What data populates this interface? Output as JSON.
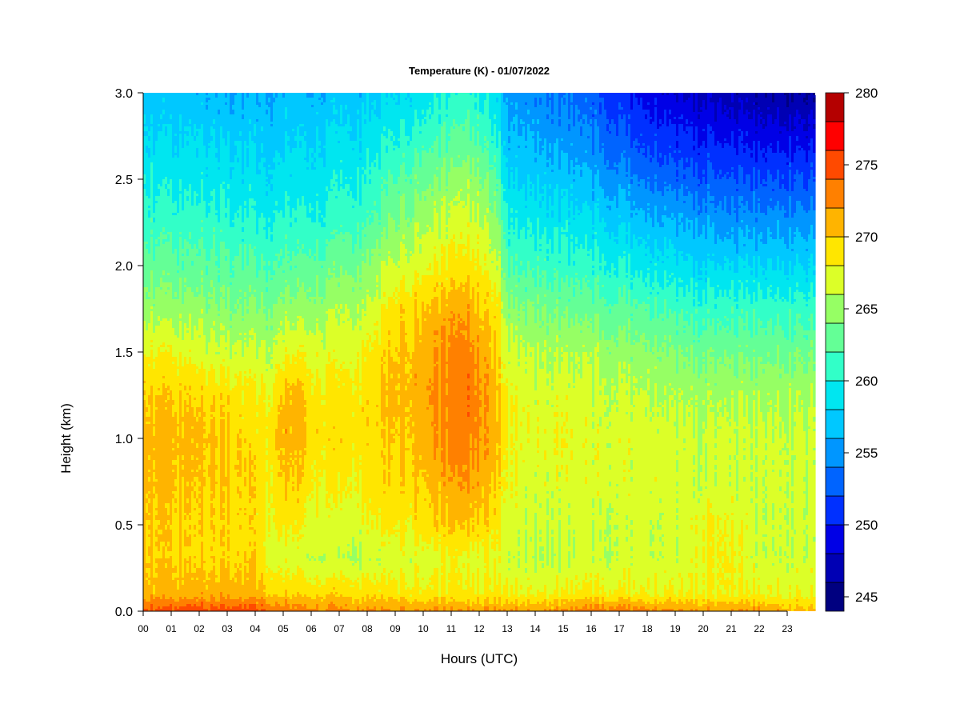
{
  "chart_data": {
    "type": "heatmap",
    "title": "Temperature (K) - 01/07/2022",
    "xlabel": "Hours (UTC)",
    "ylabel": "Height (km)",
    "xlim": [
      0,
      24
    ],
    "ylim": [
      0,
      3.0
    ],
    "x_ticks": [
      "00",
      "01",
      "02",
      "03",
      "04",
      "05",
      "06",
      "07",
      "08",
      "09",
      "10",
      "11",
      "12",
      "13",
      "14",
      "15",
      "16",
      "17",
      "18",
      "19",
      "20",
      "21",
      "22",
      "23"
    ],
    "y_ticks": [
      "0.0",
      "0.5",
      "1.0",
      "1.5",
      "2.0",
      "2.5",
      "3.0"
    ],
    "colorbar": {
      "label_values": [
        "245",
        "250",
        "255",
        "260",
        "265",
        "270",
        "275",
        "280"
      ],
      "levels": [
        244,
        246,
        248,
        250,
        252,
        254,
        256,
        258,
        260,
        262,
        264,
        266,
        268,
        270,
        272,
        274,
        276,
        278,
        280
      ],
      "colors": [
        "#000080",
        "#0000b4",
        "#0000e6",
        "#0030ff",
        "#0064ff",
        "#0096ff",
        "#00c8ff",
        "#00e6f0",
        "#32ffc8",
        "#64ff96",
        "#96ff64",
        "#dcff28",
        "#ffe600",
        "#ffb400",
        "#ff8000",
        "#ff4a00",
        "#ff0000",
        "#b40000"
      ]
    },
    "hours": [
      0,
      1,
      2,
      3,
      4,
      4.5,
      5,
      5.5,
      6,
      7,
      8,
      9,
      10,
      11,
      11.5,
      12,
      12.7,
      13,
      14,
      15,
      16,
      17,
      18,
      19,
      20,
      21,
      22,
      23,
      24
    ],
    "heights_km": [
      0,
      0.1,
      0.3,
      0.5,
      0.75,
      1.0,
      1.25,
      1.5,
      1.75,
      2.0,
      2.25,
      2.5,
      2.75,
      3.0
    ],
    "temperature_K": [
      [
        274.5,
        271.0,
        270.0,
        270.0,
        270.5,
        271.0,
        270.0,
        268.0,
        265.0,
        263.0,
        261.0,
        259.5,
        258.0,
        257.0
      ],
      [
        275.0,
        271.0,
        270.0,
        270.0,
        270.5,
        271.0,
        270.0,
        268.0,
        265.0,
        263.0,
        261.0,
        259.5,
        258.0,
        257.0
      ],
      [
        275.0,
        271.0,
        269.5,
        269.5,
        270.0,
        270.5,
        269.5,
        267.0,
        265.0,
        262.5,
        261.0,
        259.0,
        258.0,
        256.5
      ],
      [
        275.0,
        271.0,
        269.5,
        269.5,
        270.0,
        270.0,
        269.0,
        266.5,
        264.0,
        262.5,
        260.5,
        259.0,
        257.5,
        256.0
      ],
      [
        275.0,
        271.0,
        269.5,
        269.0,
        269.5,
        269.0,
        268.5,
        266.5,
        264.0,
        262.0,
        260.0,
        258.5,
        257.5,
        256.0
      ],
      [
        274.0,
        270.0,
        267.5,
        268.0,
        268.5,
        269.0,
        268.0,
        266.0,
        264.0,
        262.0,
        260.0,
        258.5,
        257.0,
        256.0
      ],
      [
        273.5,
        269.5,
        267.0,
        268.5,
        270.0,
        271.0,
        270.5,
        267.5,
        265.0,
        262.5,
        260.5,
        259.0,
        257.5,
        256.5
      ],
      [
        273.5,
        269.5,
        267.0,
        268.5,
        270.0,
        271.0,
        271.0,
        268.0,
        265.0,
        262.5,
        260.5,
        259.0,
        258.0,
        256.5
      ],
      [
        273.0,
        269.5,
        266.5,
        267.5,
        268.5,
        269.5,
        269.0,
        267.5,
        265.0,
        263.0,
        260.5,
        259.0,
        258.0,
        256.5
      ],
      [
        272.5,
        269.5,
        266.0,
        266.5,
        268.0,
        269.0,
        268.5,
        267.0,
        265.5,
        263.0,
        261.0,
        259.5,
        258.0,
        257.0
      ],
      [
        272.0,
        269.0,
        266.0,
        267.5,
        268.5,
        269.0,
        269.0,
        268.0,
        266.0,
        264.0,
        261.5,
        260.0,
        258.5,
        257.0
      ],
      [
        272.0,
        269.0,
        266.5,
        268.5,
        269.5,
        270.0,
        270.5,
        270.0,
        269.0,
        266.5,
        264.0,
        262.0,
        260.0,
        258.0
      ],
      [
        272.0,
        268.5,
        267.0,
        269.0,
        270.0,
        271.0,
        271.5,
        271.0,
        270.0,
        267.5,
        265.5,
        263.5,
        261.0,
        259.0
      ],
      [
        272.0,
        268.5,
        267.5,
        270.0,
        271.5,
        272.5,
        273.0,
        272.5,
        271.0,
        268.5,
        266.5,
        264.5,
        262.0,
        260.0
      ],
      [
        272.0,
        268.5,
        267.5,
        270.0,
        272.0,
        273.0,
        273.5,
        273.0,
        271.5,
        269.0,
        267.0,
        265.0,
        262.5,
        260.5
      ],
      [
        272.0,
        268.5,
        267.5,
        270.0,
        271.5,
        272.5,
        272.5,
        272.0,
        270.5,
        268.5,
        266.5,
        264.5,
        262.0,
        260.0
      ],
      [
        272.0,
        268.5,
        267.5,
        268.5,
        269.5,
        270.0,
        270.0,
        269.5,
        268.5,
        266.0,
        264.0,
        262.0,
        259.5,
        258.0
      ],
      [
        272.0,
        268.0,
        266.5,
        267.0,
        267.5,
        268.0,
        268.0,
        266.5,
        264.5,
        262.0,
        260.0,
        258.0,
        256.5,
        255.0
      ],
      [
        272.0,
        268.0,
        266.0,
        266.5,
        267.0,
        267.5,
        267.0,
        266.0,
        264.0,
        261.5,
        259.5,
        257.5,
        256.0,
        254.5
      ],
      [
        272.0,
        268.0,
        266.0,
        266.5,
        267.0,
        267.5,
        267.0,
        265.5,
        263.5,
        261.0,
        259.0,
        257.0,
        255.0,
        253.5
      ],
      [
        273.0,
        268.5,
        266.5,
        266.5,
        267.0,
        267.0,
        266.5,
        265.5,
        263.0,
        260.5,
        258.5,
        256.0,
        254.0,
        252.5
      ],
      [
        273.5,
        268.5,
        266.5,
        266.5,
        267.0,
        267.0,
        266.5,
        265.0,
        262.5,
        260.0,
        257.5,
        255.0,
        252.5,
        251.0
      ],
      [
        272.5,
        268.0,
        266.5,
        266.5,
        267.0,
        267.0,
        266.0,
        264.5,
        262.0,
        259.0,
        256.5,
        253.5,
        251.0,
        249.0
      ],
      [
        272.0,
        268.0,
        266.5,
        266.5,
        266.5,
        266.5,
        265.5,
        264.0,
        261.5,
        258.5,
        256.0,
        253.0,
        250.5,
        248.0
      ],
      [
        272.0,
        268.0,
        268.0,
        268.0,
        266.5,
        266.5,
        265.5,
        263.5,
        261.0,
        258.0,
        255.5,
        252.5,
        250.0,
        247.5
      ],
      [
        272.0,
        268.0,
        268.0,
        268.0,
        266.5,
        266.5,
        265.5,
        263.5,
        261.0,
        258.0,
        255.0,
        252.0,
        249.5,
        247.0
      ],
      [
        272.0,
        268.0,
        266.5,
        266.5,
        266.5,
        266.5,
        265.5,
        263.5,
        261.0,
        258.0,
        255.0,
        252.0,
        249.0,
        246.5
      ],
      [
        271.0,
        267.5,
        266.5,
        266.5,
        266.5,
        266.5,
        265.5,
        263.5,
        261.0,
        258.0,
        255.0,
        252.0,
        249.0,
        246.0
      ],
      [
        271.0,
        267.5,
        266.5,
        266.5,
        266.5,
        266.5,
        265.5,
        263.5,
        261.0,
        258.0,
        255.0,
        252.0,
        249.0,
        246.0
      ]
    ]
  }
}
